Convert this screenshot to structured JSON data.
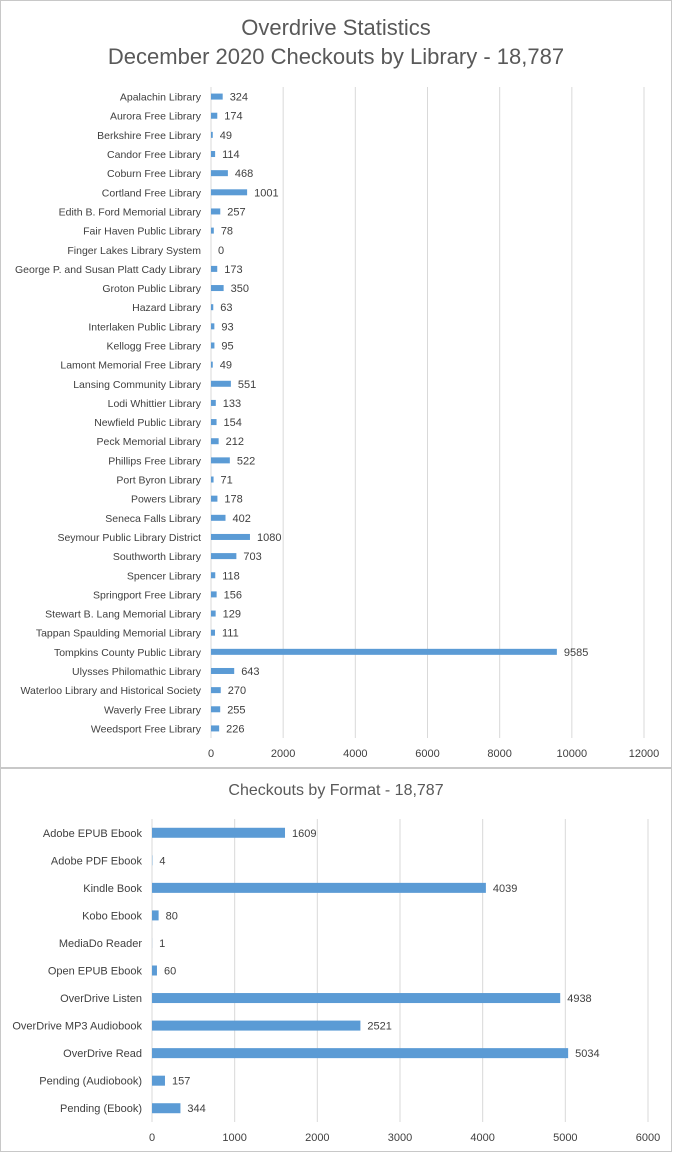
{
  "chart_data": [
    {
      "type": "bar",
      "orientation": "horizontal",
      "title": "Overdrive Statistics",
      "subtitle": "December 2020 Checkouts by Library - 18,787",
      "xlim": [
        0,
        12000
      ],
      "xticks": [
        0,
        2000,
        4000,
        6000,
        8000,
        10000,
        12000
      ],
      "grid": true,
      "bar_color": "#5b9bd5",
      "categories": [
        "Apalachin Library",
        "Aurora Free Library",
        "Berkshire Free Library",
        "Candor Free Library",
        "Coburn Free Library",
        "Cortland Free Library",
        "Edith B. Ford Memorial Library",
        "Fair Haven Public Library",
        "Finger Lakes Library System",
        "George P. and Susan Platt Cady Library",
        "Groton Public Library",
        "Hazard Library",
        "Interlaken Public Library",
        "Kellogg Free Library",
        "Lamont Memorial Free Library",
        "Lansing Community Library",
        "Lodi Whittier Library",
        "Newfield Public Library",
        "Peck Memorial Library",
        "Phillips Free Library",
        "Port Byron Library",
        "Powers Library",
        "Seneca Falls Library",
        "Seymour Public Library District",
        "Southworth Library",
        "Spencer Library",
        "Springport Free Library",
        "Stewart B. Lang Memorial Library",
        "Tappan Spaulding Memorial Library",
        "Tompkins County Public Library",
        "Ulysses Philomathic Library",
        "Waterloo Library and Historical Society",
        "Waverly Free Library",
        "Weedsport Free Library"
      ],
      "values": [
        324,
        174,
        49,
        114,
        468,
        1001,
        257,
        78,
        0,
        173,
        350,
        63,
        93,
        95,
        49,
        551,
        133,
        154,
        212,
        522,
        71,
        178,
        402,
        1080,
        703,
        118,
        156,
        129,
        111,
        9585,
        643,
        270,
        255,
        226
      ]
    },
    {
      "type": "bar",
      "orientation": "horizontal",
      "title": "Checkouts by Format - 18,787",
      "xlim": [
        0,
        6000
      ],
      "xticks": [
        0,
        1000,
        2000,
        3000,
        4000,
        5000,
        6000
      ],
      "grid": true,
      "bar_color": "#5b9bd5",
      "categories": [
        "Adobe EPUB Ebook",
        "Adobe PDF Ebook",
        "Kindle Book",
        "Kobo Ebook",
        "MediaDo Reader",
        "Open EPUB Ebook",
        "OverDrive Listen",
        "OverDrive MP3 Audiobook",
        "OverDrive Read",
        "Pending (Audiobook)",
        "Pending (Ebook)"
      ],
      "values": [
        1609,
        4,
        4039,
        80,
        1,
        60,
        4938,
        2521,
        5034,
        157,
        344
      ]
    }
  ]
}
